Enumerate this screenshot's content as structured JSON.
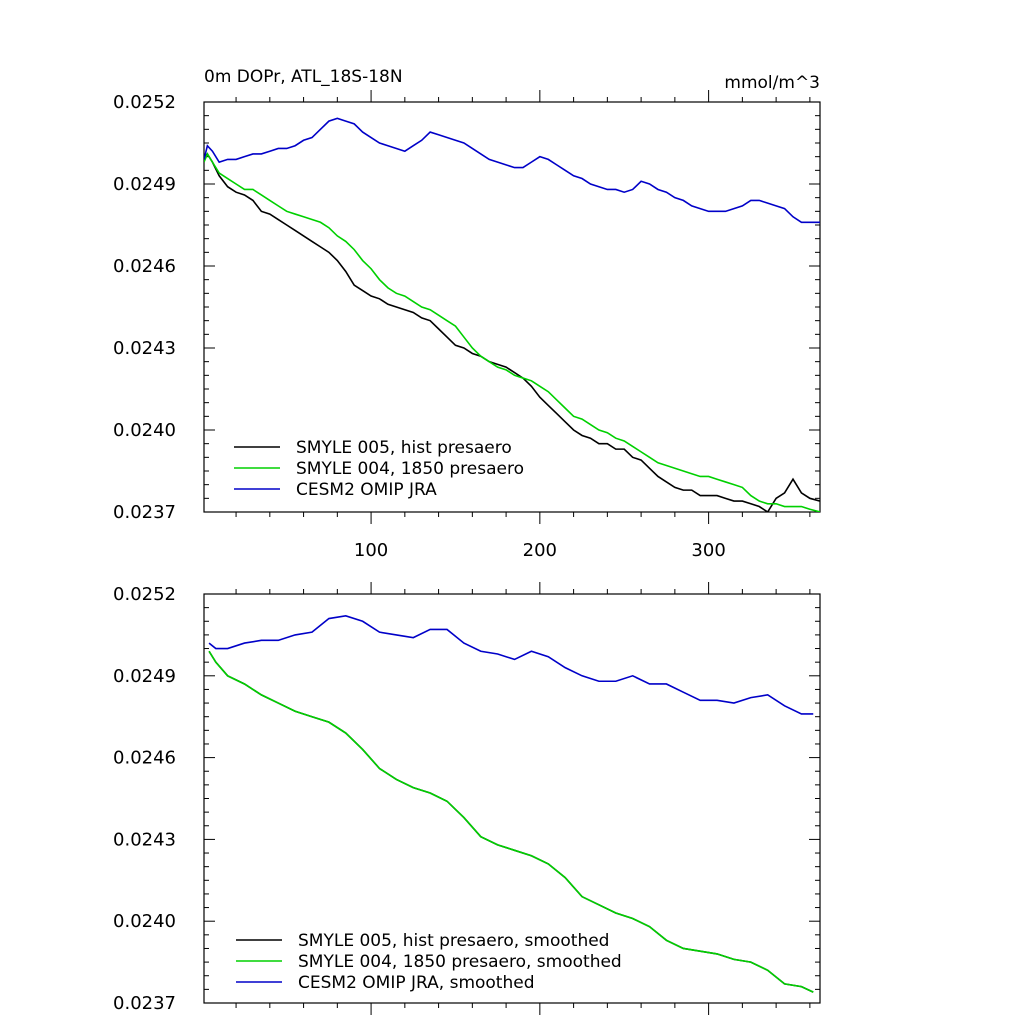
{
  "chart_data": [
    {
      "type": "line",
      "title": "0m DOPr, ATL_18S-18N",
      "units": "mmol/m^3",
      "xlim": [
        1,
        366
      ],
      "ylim": [
        0.0237,
        0.0252
      ],
      "xticks": [
        100,
        200,
        300
      ],
      "xtick_labels": [
        "100",
        "200",
        "300"
      ],
      "yticks": [
        0.0237,
        0.024,
        0.0243,
        0.0246,
        0.0249,
        0.0252
      ],
      "ytick_labels": [
        "0.0237",
        "0.0240",
        "0.0243",
        "0.0246",
        "0.0249",
        "0.0252"
      ],
      "legend_position": "bottom-left",
      "series": [
        {
          "name": "SMYLE 005, hist presaero",
          "color": "#000000",
          "x": [
            1,
            3,
            6,
            10,
            15,
            20,
            25,
            30,
            35,
            40,
            45,
            50,
            55,
            60,
            65,
            70,
            75,
            80,
            85,
            90,
            95,
            100,
            105,
            110,
            115,
            120,
            125,
            130,
            135,
            140,
            145,
            150,
            155,
            160,
            165,
            170,
            175,
            180,
            185,
            190,
            195,
            200,
            205,
            210,
            215,
            220,
            225,
            230,
            235,
            240,
            245,
            250,
            255,
            260,
            265,
            270,
            275,
            280,
            285,
            290,
            295,
            300,
            305,
            310,
            315,
            320,
            325,
            330,
            335,
            340,
            345,
            350,
            355,
            360,
            366
          ],
          "y": [
            0.025,
            0.02501,
            0.02498,
            0.02493,
            0.02489,
            0.02487,
            0.02486,
            0.02484,
            0.0248,
            0.02479,
            0.02477,
            0.02475,
            0.02473,
            0.02471,
            0.02469,
            0.02467,
            0.02465,
            0.02462,
            0.02458,
            0.02453,
            0.02451,
            0.02449,
            0.02448,
            0.02446,
            0.02445,
            0.02444,
            0.02443,
            0.02441,
            0.0244,
            0.02437,
            0.02434,
            0.02431,
            0.0243,
            0.02428,
            0.02427,
            0.02425,
            0.02424,
            0.02423,
            0.02421,
            0.02419,
            0.02416,
            0.02412,
            0.02409,
            0.02406,
            0.02403,
            0.024,
            0.02398,
            0.02397,
            0.02395,
            0.02395,
            0.02393,
            0.02393,
            0.0239,
            0.02389,
            0.02386,
            0.02383,
            0.02381,
            0.02379,
            0.02378,
            0.02378,
            0.02376,
            0.02376,
            0.02376,
            0.02375,
            0.02374,
            0.02374,
            0.02373,
            0.02372,
            0.0237,
            0.02375,
            0.02377,
            0.02382,
            0.02377,
            0.02375,
            0.02374
          ]
        },
        {
          "name": "SMYLE 004, 1850 presaero",
          "color": "#00d000",
          "x": [
            1,
            3,
            6,
            10,
            15,
            20,
            25,
            30,
            35,
            40,
            45,
            50,
            55,
            60,
            65,
            70,
            75,
            80,
            85,
            90,
            95,
            100,
            105,
            110,
            115,
            120,
            125,
            130,
            135,
            140,
            145,
            150,
            155,
            160,
            165,
            170,
            175,
            180,
            185,
            190,
            195,
            200,
            205,
            210,
            215,
            220,
            225,
            230,
            235,
            240,
            245,
            250,
            255,
            260,
            265,
            270,
            275,
            280,
            285,
            290,
            295,
            300,
            305,
            310,
            315,
            320,
            325,
            330,
            335,
            340,
            345,
            350,
            355,
            360,
            366
          ],
          "y": [
            0.02498,
            0.02501,
            0.02498,
            0.02494,
            0.02492,
            0.0249,
            0.02488,
            0.02488,
            0.02486,
            0.02484,
            0.02482,
            0.0248,
            0.02479,
            0.02478,
            0.02477,
            0.02476,
            0.02474,
            0.02471,
            0.02469,
            0.02466,
            0.02462,
            0.02459,
            0.02455,
            0.02452,
            0.0245,
            0.02449,
            0.02447,
            0.02445,
            0.02444,
            0.02442,
            0.0244,
            0.02438,
            0.02434,
            0.0243,
            0.02427,
            0.02425,
            0.02423,
            0.02422,
            0.0242,
            0.02419,
            0.02418,
            0.02416,
            0.02414,
            0.02411,
            0.02408,
            0.02405,
            0.02404,
            0.02402,
            0.024,
            0.02399,
            0.02397,
            0.02396,
            0.02394,
            0.02392,
            0.0239,
            0.02388,
            0.02387,
            0.02386,
            0.02385,
            0.02384,
            0.02383,
            0.02383,
            0.02382,
            0.02381,
            0.0238,
            0.02379,
            0.02376,
            0.02374,
            0.02373,
            0.02373,
            0.02372,
            0.02372,
            0.02372,
            0.02371,
            0.0237
          ]
        },
        {
          "name": "CESM2 OMIP JRA",
          "color": "#0000c8",
          "x": [
            1,
            3,
            6,
            10,
            15,
            20,
            25,
            30,
            35,
            40,
            45,
            50,
            55,
            60,
            65,
            70,
            75,
            80,
            85,
            90,
            95,
            100,
            105,
            110,
            115,
            120,
            125,
            130,
            135,
            140,
            145,
            150,
            155,
            160,
            165,
            170,
            175,
            180,
            185,
            190,
            195,
            200,
            205,
            210,
            215,
            220,
            225,
            230,
            235,
            240,
            245,
            250,
            255,
            260,
            265,
            270,
            275,
            280,
            285,
            290,
            295,
            300,
            305,
            310,
            315,
            320,
            325,
            330,
            335,
            340,
            345,
            350,
            355,
            360,
            366
          ],
          "y": [
            0.02499,
            0.02504,
            0.02502,
            0.02498,
            0.02499,
            0.02499,
            0.025,
            0.02501,
            0.02501,
            0.02502,
            0.02503,
            0.02503,
            0.02504,
            0.02506,
            0.02507,
            0.0251,
            0.02513,
            0.02514,
            0.02513,
            0.02512,
            0.02509,
            0.02507,
            0.02505,
            0.02504,
            0.02503,
            0.02502,
            0.02504,
            0.02506,
            0.02509,
            0.02508,
            0.02507,
            0.02506,
            0.02505,
            0.02503,
            0.02501,
            0.02499,
            0.02498,
            0.02497,
            0.02496,
            0.02496,
            0.02498,
            0.025,
            0.02499,
            0.02497,
            0.02495,
            0.02493,
            0.02492,
            0.0249,
            0.02489,
            0.02488,
            0.02488,
            0.02487,
            0.02488,
            0.02491,
            0.0249,
            0.02488,
            0.02487,
            0.02485,
            0.02484,
            0.02482,
            0.02481,
            0.0248,
            0.0248,
            0.0248,
            0.02481,
            0.02482,
            0.02484,
            0.02484,
            0.02483,
            0.02482,
            0.02481,
            0.02478,
            0.02476,
            0.02476,
            0.02476
          ]
        }
      ]
    },
    {
      "type": "line",
      "title": "",
      "xlim": [
        1,
        366
      ],
      "ylim": [
        0.0237,
        0.0252
      ],
      "xticks": [
        100,
        200,
        300
      ],
      "xtick_labels": [],
      "yticks": [
        0.0237,
        0.024,
        0.0243,
        0.0246,
        0.0249,
        0.0252
      ],
      "ytick_labels": [
        "0.0237",
        "0.0240",
        "0.0243",
        "0.0246",
        "0.0249",
        "0.0252"
      ],
      "legend_position": "bottom-left",
      "series": [
        {
          "name": "SMYLE 005, hist presaero, smoothed",
          "color": "#000000",
          "x": [
            4,
            8,
            15,
            25,
            35,
            45,
            55,
            65,
            75,
            85,
            95,
            105,
            115,
            125,
            135,
            145,
            155,
            165,
            175,
            185,
            195,
            205,
            215,
            225,
            235,
            245,
            255,
            265,
            275,
            285,
            295,
            305,
            315,
            325,
            335,
            345,
            355,
            362
          ],
          "y": [
            0.02499,
            0.02495,
            0.0249,
            0.02487,
            0.02483,
            0.0248,
            0.02477,
            0.02475,
            0.02473,
            0.02469,
            0.02463,
            0.02456,
            0.02452,
            0.02449,
            0.02447,
            0.02444,
            0.02438,
            0.02431,
            0.02428,
            0.02426,
            0.02424,
            0.02421,
            0.02416,
            0.02409,
            0.02406,
            0.02403,
            0.02401,
            0.02398,
            0.02393,
            0.0239,
            0.02389,
            0.02388,
            0.02386,
            0.02385,
            0.02382,
            0.02377,
            0.02376,
            0.02374
          ]
        },
        {
          "name": "SMYLE 004, 1850 presaero, smoothed",
          "color": "#00d000",
          "x": [
            4,
            8,
            15,
            25,
            35,
            45,
            55,
            65,
            75,
            85,
            95,
            105,
            115,
            125,
            135,
            145,
            155,
            165,
            175,
            185,
            195,
            205,
            215,
            225,
            235,
            245,
            255,
            265,
            275,
            285,
            295,
            305,
            315,
            325,
            335,
            345,
            355,
            362
          ],
          "y": [
            0.02499,
            0.02495,
            0.0249,
            0.02487,
            0.02483,
            0.0248,
            0.02477,
            0.02475,
            0.02473,
            0.02469,
            0.02463,
            0.02456,
            0.02452,
            0.02449,
            0.02447,
            0.02444,
            0.02438,
            0.02431,
            0.02428,
            0.02426,
            0.02424,
            0.02421,
            0.02416,
            0.02409,
            0.02406,
            0.02403,
            0.02401,
            0.02398,
            0.02393,
            0.0239,
            0.02389,
            0.02388,
            0.02386,
            0.02385,
            0.02382,
            0.02377,
            0.02376,
            0.02374
          ]
        },
        {
          "name": "CESM2 OMIP JRA, smoothed",
          "color": "#0000c8",
          "x": [
            4,
            8,
            15,
            25,
            35,
            45,
            55,
            65,
            75,
            85,
            95,
            105,
            115,
            125,
            135,
            145,
            155,
            165,
            175,
            185,
            195,
            205,
            215,
            225,
            235,
            245,
            255,
            265,
            275,
            285,
            295,
            305,
            315,
            325,
            335,
            345,
            355,
            362
          ],
          "y": [
            0.02502,
            0.025,
            0.025,
            0.02502,
            0.02503,
            0.02503,
            0.02505,
            0.02506,
            0.02511,
            0.02512,
            0.0251,
            0.02506,
            0.02505,
            0.02504,
            0.02507,
            0.02507,
            0.02502,
            0.02499,
            0.02498,
            0.02496,
            0.02499,
            0.02497,
            0.02493,
            0.0249,
            0.02488,
            0.02488,
            0.0249,
            0.02487,
            0.02487,
            0.02484,
            0.02481,
            0.02481,
            0.0248,
            0.02482,
            0.02483,
            0.02479,
            0.02476,
            0.02476
          ]
        }
      ]
    }
  ]
}
